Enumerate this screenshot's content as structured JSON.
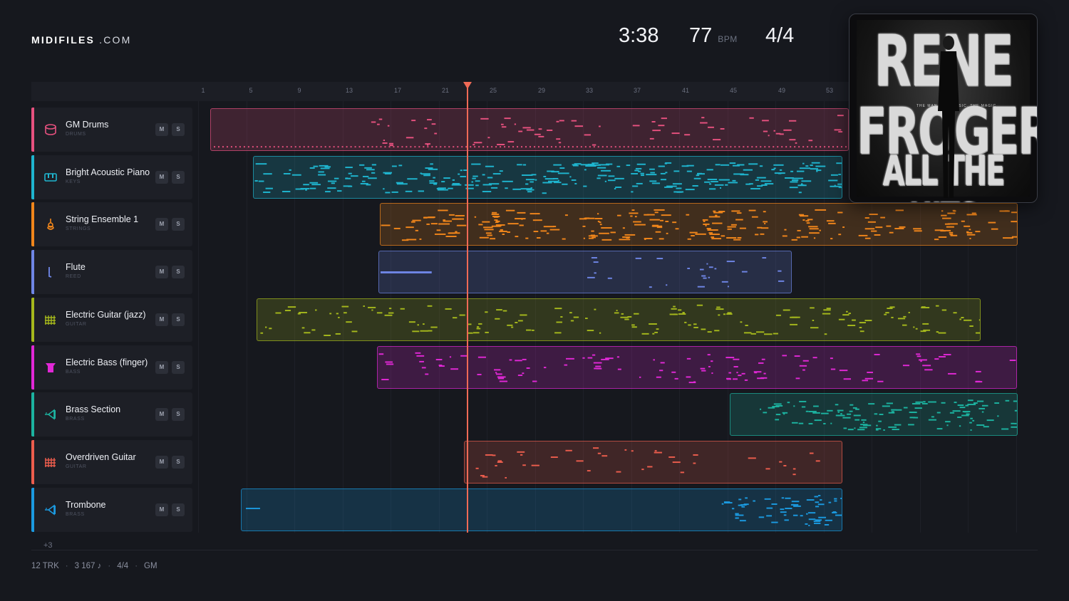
{
  "brand": {
    "name": "MIDIFILES",
    "domain": ".COM"
  },
  "transport": {
    "time": "3:38",
    "tempo": "77",
    "tempo_unit": "BPM",
    "time_signature": "4/4"
  },
  "cover": {
    "line1": "RENE",
    "line2": "FROGER",
    "line3": "ALL THE HITS",
    "tagline": "THE MAN. THE MUSIC. THE MAGIC"
  },
  "ruler": {
    "bars": [
      "1",
      "5",
      "9",
      "13",
      "17",
      "21",
      "25",
      "29",
      "33",
      "37",
      "41",
      "45",
      "49",
      "53"
    ]
  },
  "buttons": {
    "mute": "M",
    "solo": "S"
  },
  "tracks": [
    {
      "name": "GM Drums",
      "category": "DRUMS",
      "color": "#e7517f",
      "icon": "drum-icon"
    },
    {
      "name": "Bright Acoustic Piano",
      "category": "KEYS",
      "color": "#1fb5cf",
      "icon": "piano-icon"
    },
    {
      "name": "String Ensemble 1",
      "category": "STRINGS",
      "color": "#f1861b",
      "icon": "violin-icon"
    },
    {
      "name": "Flute",
      "category": "REED",
      "color": "#6f86e6",
      "icon": "flute-icon"
    },
    {
      "name": "Electric Guitar (jazz)",
      "category": "GUITAR",
      "color": "#a5b81c",
      "icon": "guitar-grid-icon"
    },
    {
      "name": "Electric Bass (finger)",
      "category": "BASS",
      "color": "#e128d6",
      "icon": "bass-icon"
    },
    {
      "name": "Brass Section",
      "category": "BRASS",
      "color": "#1cb3a0",
      "icon": "horn-icon"
    },
    {
      "name": "Overdriven Guitar",
      "category": "GUITAR",
      "color": "#ec5d4d",
      "icon": "guitar-grid-icon"
    },
    {
      "name": "Trombone",
      "category": "BRASS",
      "color": "#1b9ae0",
      "icon": "horn-icon"
    }
  ],
  "more_tracks": "+3",
  "footer": {
    "tracks": "12 TRK",
    "notes": "3 167 ♪",
    "signature": "4/4",
    "standard": "GM"
  }
}
